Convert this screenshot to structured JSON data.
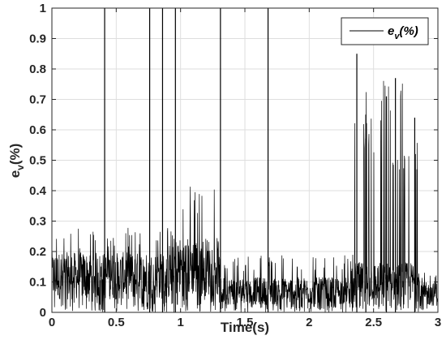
{
  "chart_data": {
    "type": "line",
    "title": "",
    "xlabel": "Time(s)",
    "ylabel": {
      "base": "e",
      "sub": "v",
      "suffix": "(%)"
    },
    "xlim": [
      0,
      3
    ],
    "ylim": [
      0,
      1
    ],
    "xticks": [
      0,
      0.5,
      1,
      1.5,
      2,
      2.5,
      3
    ],
    "xtick_labels": [
      "0",
      "0.5",
      "1",
      "1.5",
      "2",
      "2.5",
      "3"
    ],
    "yticks": [
      0,
      0.1,
      0.2,
      0.3,
      0.4,
      0.5,
      0.6,
      0.7,
      0.8,
      0.9,
      1
    ],
    "ytick_labels": [
      "0",
      "0.1",
      "0.2",
      "0.3",
      "0.4",
      "0.5",
      "0.6",
      "0.7",
      "0.8",
      "0.9",
      "1"
    ],
    "grid": true,
    "legend_position": "top-right",
    "series": [
      {
        "name": {
          "base": "e",
          "sub": "v",
          "suffix": "(%)"
        },
        "color": "#000000",
        "sample_step_s": 0.002,
        "envelope": [
          {
            "t_start": 0.0,
            "t_end": 0.02,
            "peak": 0.4,
            "base": 0.12
          },
          {
            "t_start": 0.02,
            "t_end": 0.95,
            "peak": 0.28,
            "base": 0.12
          },
          {
            "t_start": 0.95,
            "t_end": 1.3,
            "peak": 0.42,
            "base": 0.15
          },
          {
            "t_start": 1.3,
            "t_end": 2.35,
            "peak": 0.19,
            "base": 0.07
          },
          {
            "t_start": 2.35,
            "t_end": 2.86,
            "peak": 0.77,
            "base": 0.1
          },
          {
            "t_start": 2.86,
            "t_end": 3.0,
            "peak": 0.14,
            "base": 0.06
          }
        ],
        "spikes": [
          {
            "t": 0.41,
            "v": 1.0
          },
          {
            "t": 0.76,
            "v": 1.0
          },
          {
            "t": 0.86,
            "v": 1.0
          },
          {
            "t": 0.96,
            "v": 1.0
          },
          {
            "t": 1.31,
            "v": 1.0
          },
          {
            "t": 1.68,
            "v": 1.0
          },
          {
            "t": 2.37,
            "v": 0.85
          },
          {
            "t": 2.67,
            "v": 0.77
          },
          {
            "t": 2.6,
            "v": 0.71
          },
          {
            "t": 2.44,
            "v": 0.65
          },
          {
            "t": 2.82,
            "v": 0.64
          }
        ]
      }
    ]
  }
}
